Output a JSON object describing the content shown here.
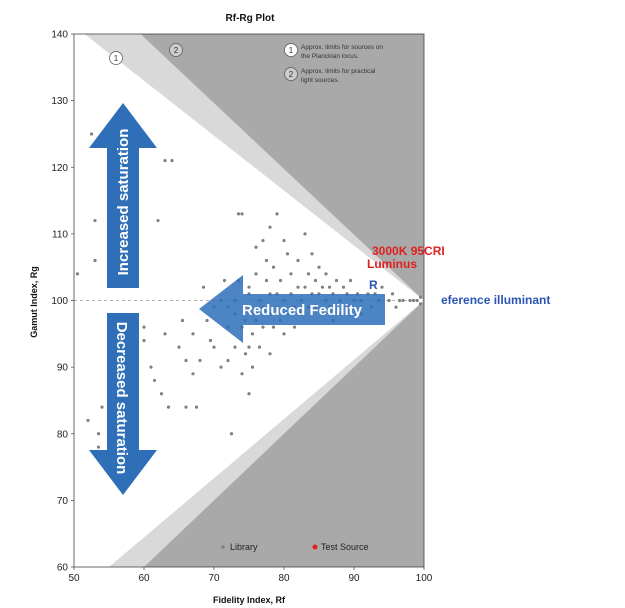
{
  "chart_data": {
    "type": "scatter",
    "title": "Rf-Rg Plot",
    "xlabel": "Fidelity Index, Rf",
    "ylabel": "Gamut Index, Rg",
    "xlim": [
      50,
      100
    ],
    "ylim": [
      60,
      140
    ],
    "x_ticks": [
      "50",
      "60",
      "70",
      "80",
      "90",
      "100"
    ],
    "y_ticks": [
      "60",
      "70",
      "80",
      "90",
      "100",
      "110",
      "120",
      "130",
      "140"
    ],
    "grid": false,
    "reference_line_y": 100,
    "zone_labels": [
      "1",
      "2"
    ],
    "notes": [
      {
        "num": "1",
        "lines": [
          "Approx. limits for sources on",
          "the Planckian locus."
        ]
      },
      {
        "num": "2",
        "lines": [
          "Approx. limits for practical",
          "light sources."
        ]
      }
    ],
    "legend": {
      "position": "bottom-center",
      "entries": [
        {
          "name": "Library",
          "color": "#808080"
        },
        {
          "name": "Test Source",
          "color": "#e02020"
        }
      ]
    },
    "annotations": {
      "increased": "Increased saturation",
      "decreased": "Decreased saturation",
      "reduced": "Reduced Fedility",
      "test_source_label_1": "3000K 95CRI",
      "test_source_label_2": "Luminus",
      "reference_label": "eference illuminant",
      "marker_label": "R"
    },
    "colors": {
      "arrow_blue": "#2e6fb8",
      "dark_zone": "#a9a9a9",
      "light_zone": "#d9d9d9",
      "points": "#808080",
      "red": "#e02020",
      "blue_text": "#2a55b0"
    },
    "series": [
      {
        "name": "Library",
        "points": [
          [
            50.5,
            104
          ],
          [
            52,
            82
          ],
          [
            52.5,
            125
          ],
          [
            53,
            112
          ],
          [
            53,
            106
          ],
          [
            53.5,
            80
          ],
          [
            53.5,
            78
          ],
          [
            54,
            84
          ],
          [
            55,
            89
          ],
          [
            56,
            97
          ],
          [
            57,
            92
          ],
          [
            58,
            88
          ],
          [
            59,
            84
          ],
          [
            60,
            96
          ],
          [
            60,
            94
          ],
          [
            61,
            90
          ],
          [
            61.5,
            88
          ],
          [
            62,
            112
          ],
          [
            62.5,
            86
          ],
          [
            63,
            95
          ],
          [
            63,
            121
          ],
          [
            63.5,
            84
          ],
          [
            64,
            121
          ],
          [
            65,
            93
          ],
          [
            65.5,
            97
          ],
          [
            66,
            84
          ],
          [
            66,
            91
          ],
          [
            67,
            95
          ],
          [
            67,
            89
          ],
          [
            67.5,
            84
          ],
          [
            68,
            91
          ],
          [
            68.5,
            102
          ],
          [
            69,
            97
          ],
          [
            69.5,
            94
          ],
          [
            70,
            93
          ],
          [
            70,
            99
          ],
          [
            71,
            90
          ],
          [
            71,
            100
          ],
          [
            71.5,
            103
          ],
          [
            72,
            96
          ],
          [
            72,
            91
          ],
          [
            72,
            99
          ],
          [
            72.5,
            80
          ],
          [
            73,
            98
          ],
          [
            73,
            93
          ],
          [
            73,
            100
          ],
          [
            73.5,
            103
          ],
          [
            73.5,
            113
          ],
          [
            74,
            96
          ],
          [
            74,
            89
          ],
          [
            74,
            113
          ],
          [
            74.5,
            92
          ],
          [
            74.5,
            97
          ],
          [
            75,
            86
          ],
          [
            75,
            101
          ],
          [
            75,
            93
          ],
          [
            75,
            102
          ],
          [
            75.5,
            95
          ],
          [
            75.5,
            90
          ],
          [
            75.5,
            98
          ],
          [
            76,
            97
          ],
          [
            76,
            108
          ],
          [
            76,
            104
          ],
          [
            76.5,
            93
          ],
          [
            76.5,
            100
          ],
          [
            77,
            109
          ],
          [
            77,
            99
          ],
          [
            77,
            96
          ],
          [
            77.5,
            106
          ],
          [
            77.5,
            103
          ],
          [
            78,
            92
          ],
          [
            78,
            111
          ],
          [
            78,
            98
          ],
          [
            78,
            101
          ],
          [
            78.5,
            105
          ],
          [
            78.5,
            96
          ],
          [
            79,
            99
          ],
          [
            79,
            113
          ],
          [
            79,
            101
          ],
          [
            79.5,
            97
          ],
          [
            79.5,
            103
          ],
          [
            80,
            109
          ],
          [
            80,
            100
          ],
          [
            80,
            95
          ],
          [
            80.5,
            98
          ],
          [
            80.5,
            107
          ],
          [
            81,
            101
          ],
          [
            81,
            104
          ],
          [
            81.5,
            99
          ],
          [
            81.5,
            96
          ],
          [
            82,
            102
          ],
          [
            82,
            106
          ],
          [
            82.5,
            100
          ],
          [
            82.5,
            98
          ],
          [
            83,
            110
          ],
          [
            83,
            102
          ],
          [
            83.5,
            99
          ],
          [
            83.5,
            104
          ],
          [
            84,
            101
          ],
          [
            84,
            107
          ],
          [
            84.5,
            103
          ],
          [
            84.5,
            99
          ],
          [
            85,
            105
          ],
          [
            85,
            101
          ],
          [
            85.5,
            102
          ],
          [
            85.5,
            98
          ],
          [
            86,
            100
          ],
          [
            86,
            104
          ],
          [
            86.5,
            102
          ],
          [
            86.5,
            99
          ],
          [
            87,
            101
          ],
          [
            87,
            97
          ],
          [
            87.5,
            103
          ],
          [
            88,
            100
          ],
          [
            88,
            98
          ],
          [
            88.5,
            102
          ],
          [
            89,
            101
          ],
          [
            89,
            99
          ],
          [
            89.5,
            103
          ],
          [
            90,
            100
          ],
          [
            90.5,
            101
          ],
          [
            91,
            100
          ],
          [
            91,
            98
          ],
          [
            92,
            101
          ],
          [
            92.5,
            99
          ],
          [
            93,
            101
          ],
          [
            93.5,
            100
          ],
          [
            94,
            102
          ],
          [
            95,
            100
          ],
          [
            95.5,
            101
          ],
          [
            96,
            99
          ],
          [
            96.5,
            100
          ],
          [
            97,
            100
          ],
          [
            98,
            100
          ],
          [
            98.5,
            100
          ],
          [
            99,
            100
          ],
          [
            99.5,
            99.5
          ],
          [
            99.5,
            100.5
          ]
        ]
      }
    ]
  }
}
